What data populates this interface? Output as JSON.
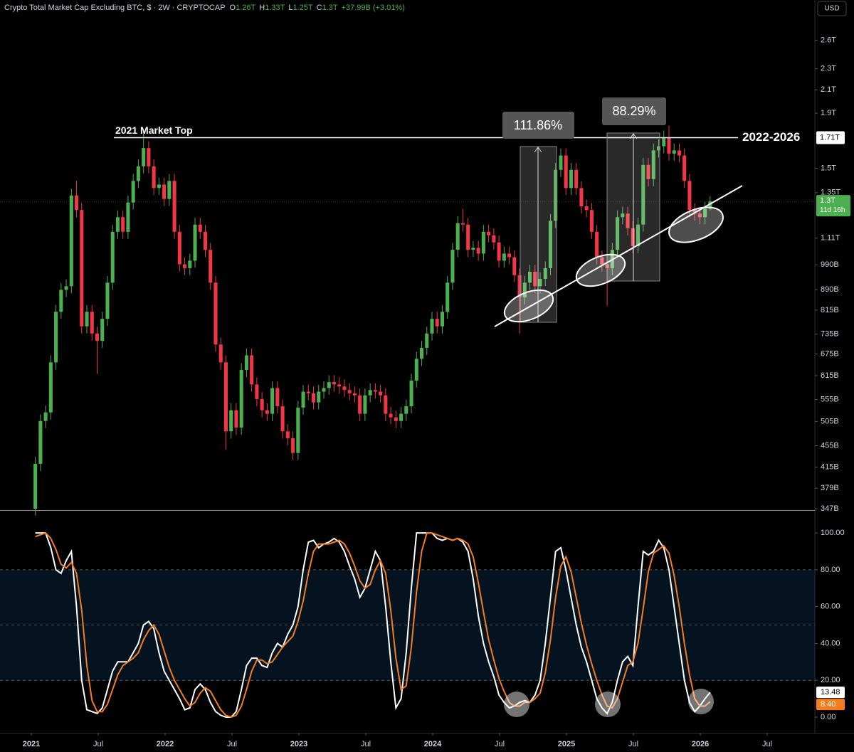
{
  "chart_data": {
    "type": "candlestick",
    "title": "Crypto Total Market Cap Excluding BTC, $ · 2W · CRYPTOCAP",
    "ohlc": [
      {
        "key": "O",
        "label": "1.26T"
      },
      {
        "key": "H",
        "label": "1.33T"
      },
      {
        "key": "L",
        "label": "1.25T"
      },
      {
        "key": "C",
        "label": "1.3T"
      }
    ],
    "change": "+37.99B (+3.01%)",
    "currency": "USD",
    "log": true,
    "grid": false,
    "up_color": "#4caf50",
    "down_color": "#f23645",
    "x": [
      2021.03,
      2021.0685,
      2021.107,
      2021.1455,
      2021.184,
      2021.2225,
      2021.261,
      2021.2995,
      2021.338,
      2021.3765,
      2021.415,
      2021.4535,
      2021.492,
      2021.5305,
      2021.569,
      2021.6075,
      2021.646,
      2021.6845,
      2021.723,
      2021.7615,
      2021.8,
      2021.8385,
      2021.877,
      2021.9155,
      2021.954,
      2021.9925,
      2022.031,
      2022.0695,
      2022.108,
      2022.1465,
      2022.185,
      2022.2235,
      2022.262,
      2022.3005,
      2022.339,
      2022.3775,
      2022.416,
      2022.4545,
      2022.493,
      2022.5315,
      2022.57,
      2022.6085,
      2022.647,
      2022.6855,
      2022.724,
      2022.7625,
      2022.801,
      2022.8395,
      2022.878,
      2022.9165,
      2022.955,
      2022.9935,
      2023.032,
      2023.0705,
      2023.109,
      2023.1475,
      2023.186,
      2023.2245,
      2023.263,
      2023.3015,
      2023.34,
      2023.3785,
      2023.417,
      2023.4555,
      2023.494,
      2023.5325,
      2023.571,
      2023.6095,
      2023.648,
      2023.6865,
      2023.725,
      2023.7635,
      2023.802,
      2023.8405,
      2023.879,
      2023.9175,
      2023.956,
      2023.9945,
      2024.033,
      2024.0715,
      2024.11,
      2024.1485,
      2024.187,
      2024.2255,
      2024.264,
      2024.3025,
      2024.341,
      2024.3795,
      2024.418,
      2024.4565,
      2024.495,
      2024.5335,
      2024.572,
      2024.6105,
      2024.649,
      2024.6875,
      2024.726,
      2024.7645,
      2024.803,
      2024.8415,
      2024.88,
      2024.9185,
      2024.957,
      2024.9955,
      2025.034,
      2025.0725,
      2025.111,
      2025.1495,
      2025.188,
      2025.2265,
      2025.265,
      2025.3035,
      2025.342,
      2025.3805,
      2025.419,
      2025.4575,
      2025.496,
      2025.5345,
      2025.573,
      2025.6115,
      2025.65,
      2025.6885,
      2025.727,
      2025.7655,
      2025.804,
      2025.8425,
      2025.881,
      2025.9195,
      2025.958,
      2025.9965,
      2026.035,
      2026.0735
    ],
    "open": [
      347,
      421,
      506,
      525,
      651,
      809,
      889,
      903,
      1334,
      1253,
      760,
      809,
      737,
      714,
      785,
      917,
      1141,
      1215,
      1141,
      1294,
      1420,
      1512,
      1635,
      1512,
      1377,
      1398,
      1314,
      1420,
      1141,
      992,
      976,
      1008,
      1177,
      1141,
      1056,
      917,
      703,
      651,
      484,
      530,
      492,
      630,
      671,
      592,
      556,
      530,
      522,
      583,
      539,
      484,
      470,
      441,
      536,
      574,
      570,
      548,
      574,
      583,
      598,
      592,
      587,
      578,
      570,
      565,
      522,
      565,
      578,
      574,
      565,
      522,
      514,
      506,
      522,
      539,
      602,
      661,
      693,
      737,
      785,
      760,
      809,
      917,
      1056,
      1184,
      1177,
      1056,
      1065,
      1039,
      1141,
      1124,
      1090,
      1008,
      1039,
      1023,
      947,
      861,
      917,
      961,
      903,
      932,
      976,
      1196,
      1489,
      1584,
      1377,
      1489,
      1377,
      1273,
      1253,
      1141,
      1023,
      992,
      976,
      1056,
      1215,
      1234,
      1159,
      1073,
      1177,
      1521,
      1431,
      1619,
      1648,
      1713,
      1597,
      1619,
      1584,
      1420,
      1253,
      1234,
      1215,
      1260
    ],
    "high": [
      434,
      521,
      541,
      671,
      833,
      916,
      930,
      1374,
      1420,
      1291,
      833,
      833,
      759,
      809,
      944,
      1175,
      1251,
      1251,
      1333,
      1463,
      1557,
      1770,
      1684,
      1557,
      1440,
      1440,
      1463,
      1463,
      1175,
      1022,
      1038,
      1212,
      1212,
      1175,
      1088,
      944,
      724,
      671,
      546,
      546,
      649,
      691,
      691,
      610,
      573,
      546,
      600,
      600,
      555,
      499,
      484,
      552,
      591,
      591,
      587,
      591,
      600,
      616,
      616,
      610,
      605,
      595,
      587,
      582,
      582,
      595,
      595,
      591,
      582,
      538,
      529,
      538,
      555,
      620,
      681,
      714,
      759,
      809,
      809,
      833,
      944,
      1088,
      1220,
      1260,
      1212,
      1097,
      1097,
      1175,
      1175,
      1158,
      1123,
      1070,
      1070,
      1054,
      975,
      944,
      990,
      990,
      960,
      1005,
      1232,
      1534,
      1632,
      1632,
      1534,
      1534,
      1418,
      1311,
      1291,
      1175,
      1054,
      1022,
      1088,
      1251,
      1271,
      1271,
      1194,
      1212,
      1567,
      1567,
      1668,
      1697,
      1764,
      1800,
      1668,
      1668,
      1632,
      1463,
      1291,
      1271,
      1298,
      1330
    ],
    "low": [
      337,
      408,
      491,
      509,
      631,
      785,
      862,
      876,
      1215,
      737,
      737,
      715,
      620,
      693,
      761,
      889,
      1107,
      1107,
      1107,
      1255,
      1377,
      1467,
      1467,
      1336,
      1336,
      1275,
      1275,
      1107,
      962,
      947,
      947,
      978,
      1107,
      1024,
      889,
      682,
      631,
      447,
      469,
      477,
      477,
      611,
      574,
      539,
      514,
      506,
      506,
      523,
      469,
      456,
      428,
      428,
      520,
      553,
      532,
      532,
      557,
      566,
      574,
      569,
      561,
      553,
      548,
      506,
      506,
      548,
      557,
      548,
      506,
      499,
      491,
      491,
      506,
      523,
      584,
      641,
      672,
      715,
      737,
      737,
      785,
      889,
      1024,
      1142,
      1024,
      1024,
      1008,
      1008,
      1090,
      1057,
      978,
      978,
      992,
      919,
      737,
      835,
      889,
      876,
      876,
      904,
      947,
      1160,
      1444,
      1336,
      1336,
      1336,
      1235,
      1215,
      1107,
      992,
      962,
      830,
      947,
      1024,
      1179,
      1124,
      1041,
      1041,
      1142,
      1388,
      1388,
      1570,
      1599,
      1549,
      1549,
      1536,
      1377,
      1215,
      1197,
      1179,
      1179,
      1250
    ],
    "close": [
      421,
      506,
      525,
      651,
      809,
      889,
      903,
      1334,
      1253,
      760,
      809,
      737,
      714,
      785,
      917,
      1141,
      1215,
      1141,
      1294,
      1420,
      1512,
      1635,
      1512,
      1377,
      1398,
      1314,
      1420,
      1141,
      992,
      976,
      1008,
      1177,
      1141,
      1056,
      917,
      703,
      651,
      484,
      530,
      492,
      630,
      671,
      592,
      556,
      530,
      522,
      583,
      539,
      484,
      470,
      441,
      536,
      574,
      570,
      548,
      574,
      583,
      598,
      592,
      587,
      578,
      570,
      565,
      522,
      565,
      578,
      574,
      565,
      522,
      514,
      506,
      522,
      539,
      602,
      661,
      693,
      737,
      785,
      760,
      809,
      917,
      1056,
      1184,
      1177,
      1056,
      1065,
      1039,
      1141,
      1124,
      1090,
      1008,
      1039,
      1023,
      947,
      861,
      917,
      961,
      903,
      932,
      976,
      1196,
      1489,
      1584,
      1377,
      1489,
      1377,
      1273,
      1253,
      1141,
      1023,
      992,
      976,
      1056,
      1215,
      1234,
      1159,
      1073,
      1177,
      1521,
      1431,
      1619,
      1648,
      1713,
      1597,
      1619,
      1584,
      1420,
      1253,
      1234,
      1215,
      1260,
      1300
    ],
    "price_tag": {
      "label": "1.3T",
      "countdown": "11d 16h"
    },
    "xlim": [
      2020.766,
      2026.856
    ],
    "xticks": [
      2021,
      {
        "value": 2021.5,
        "label": "Jul"
      },
      2022,
      {
        "value": 2022.5,
        "label": "Jul"
      },
      2023,
      {
        "value": 2023.5,
        "label": "Jul"
      },
      2024,
      {
        "value": 2024.5,
        "label": "Jul"
      },
      2025,
      {
        "value": 2025.5,
        "label": "Jul"
      },
      2026,
      {
        "value": 2026.5,
        "label": "Jul"
      }
    ],
    "ylim": [
      345,
      3090
    ],
    "yticks": [
      {
        "value": 2600,
        "label": "2.6T"
      },
      {
        "value": 2300,
        "label": "2.3T"
      },
      {
        "value": 2100,
        "label": "2.1T"
      },
      {
        "value": 1900,
        "label": "1.9T"
      },
      {
        "value": 1500,
        "label": "1.5T"
      },
      {
        "value": 1350,
        "label": "1.35T"
      },
      {
        "value": 1110,
        "label": "1.11T"
      },
      {
        "value": 990,
        "label": "990B"
      },
      {
        "value": 890,
        "label": "890B"
      },
      {
        "value": 815,
        "label": "815B"
      },
      {
        "value": 735,
        "label": "735B"
      },
      {
        "value": 675,
        "label": "675B"
      },
      {
        "value": 615,
        "label": "615B"
      },
      {
        "value": 555,
        "label": "555B"
      },
      {
        "value": 505,
        "label": "505B"
      },
      {
        "value": 455,
        "label": "455B"
      },
      {
        "value": 415,
        "label": "415B"
      },
      {
        "value": 379,
        "label": "379B"
      },
      {
        "value": 347,
        "label": "347B"
      }
    ],
    "resistance": {
      "value": 1710,
      "label": "1.71T",
      "text": "2021 Market Top",
      "right_text": "2022-2026"
    },
    "measures": [
      "111.86%",
      "88.29%"
    ],
    "indicator": {
      "type": "line",
      "ylim": [
        -8.5,
        112
      ],
      "yticks": [
        {
          "value": 100,
          "label": "100.00"
        },
        {
          "value": 80,
          "label": "80.00"
        },
        {
          "value": 60,
          "label": "60.00"
        },
        {
          "value": 40,
          "label": "40.00"
        },
        {
          "value": 20,
          "label": "20.00"
        },
        {
          "value": 0,
          "label": "0.00"
        }
      ],
      "levels": [
        80,
        50,
        20
      ],
      "band": [
        20,
        80
      ],
      "series": [
        {
          "color": "#ffffff",
          "values": [
            100,
            100,
            100,
            92,
            80,
            78,
            85,
            90,
            60,
            20,
            4,
            3,
            2,
            5,
            15,
            25,
            30,
            30,
            30,
            35,
            40,
            50,
            52,
            48,
            35,
            25,
            20,
            15,
            10,
            4,
            5,
            15,
            18,
            15,
            8,
            3,
            1,
            0,
            0,
            3,
            15,
            28,
            32,
            32,
            28,
            27,
            35,
            40,
            38,
            45,
            50,
            60,
            80,
            95,
            96,
            92,
            94,
            95,
            97,
            95,
            90,
            82,
            75,
            65,
            70,
            80,
            90,
            85,
            60,
            30,
            5,
            10,
            35,
            70,
            100,
            100,
            100,
            100,
            97,
            96,
            97,
            96,
            97,
            95,
            90,
            75,
            55,
            40,
            30,
            22,
            12,
            8,
            5,
            6,
            8,
            9,
            8,
            12,
            20,
            40,
            65,
            90,
            92,
            80,
            65,
            50,
            38,
            30,
            20,
            10,
            5,
            2,
            8,
            20,
            30,
            33,
            28,
            60,
            90,
            88,
            90,
            96,
            92,
            80,
            60,
            40,
            20,
            8,
            3,
            6,
            10,
            13.48
          ]
        },
        {
          "color": "#f57c1f",
          "last_label": "8.40",
          "values": [
            98,
            99,
            100,
            97,
            91,
            83,
            81,
            84,
            78,
            58,
            28,
            9,
            3,
            3,
            7,
            15,
            23,
            28,
            30,
            32,
            35,
            42,
            47,
            50,
            45,
            36,
            27,
            20,
            15,
            10,
            6,
            8,
            13,
            16,
            14,
            9,
            4,
            1,
            0,
            1,
            6,
            15,
            25,
            31,
            31,
            29,
            30,
            34,
            38,
            41,
            44,
            52,
            63,
            78,
            90,
            94,
            94,
            94,
            95,
            96,
            94,
            89,
            82,
            74,
            70,
            72,
            80,
            85,
            78,
            58,
            32,
            15,
            17,
            38,
            68,
            90,
            100,
            100,
            99,
            98,
            97,
            96,
            97,
            96,
            94,
            87,
            73,
            57,
            42,
            31,
            21,
            14,
            8,
            6,
            6,
            8,
            8,
            10,
            13,
            24,
            42,
            65,
            82,
            87,
            79,
            65,
            51,
            39,
            29,
            20,
            12,
            6,
            5,
            10,
            19,
            28,
            30,
            40,
            59,
            79,
            89,
            91,
            93,
            89,
            77,
            60,
            40,
            23,
            10,
            6,
            6,
            8.4
          ]
        }
      ]
    }
  }
}
